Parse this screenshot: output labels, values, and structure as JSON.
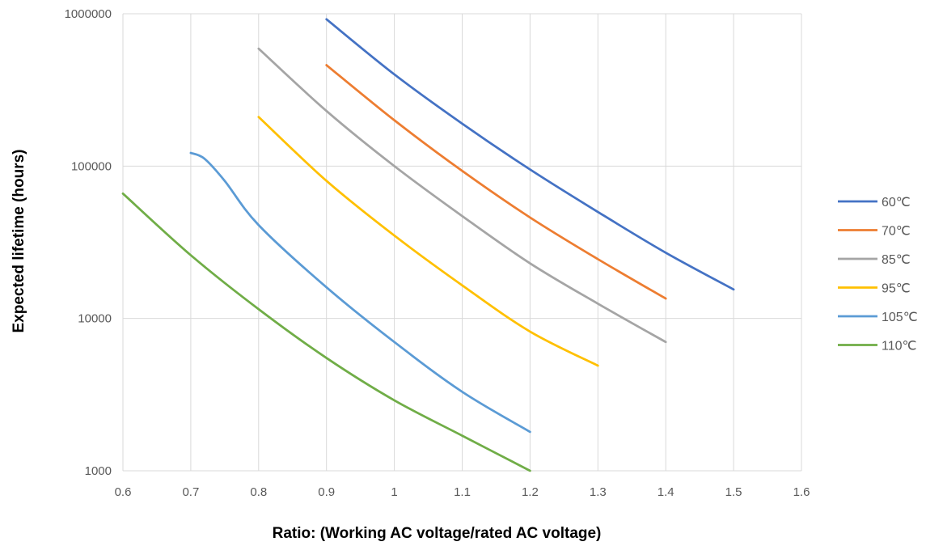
{
  "chart_data": {
    "type": "line",
    "xlabel": "Ratio: (Working AC voltage/rated AC voltage)",
    "ylabel": "Expected lifetime (hours)",
    "yscale": "log",
    "xlim": [
      0.6,
      1.6
    ],
    "ylim": [
      1000,
      1000000
    ],
    "x_ticks": [
      "0.6",
      "0.7",
      "0.8",
      "0.9",
      "1",
      "1.1",
      "1.2",
      "1.3",
      "1.4",
      "1.5",
      "1.6"
    ],
    "y_ticks": [
      "1000",
      "10000",
      "100000",
      "1000000"
    ],
    "grid": true,
    "legend_position": "right",
    "series": [
      {
        "name": "60℃",
        "color": "#4472C4",
        "points": [
          [
            0.9,
            920000
          ],
          [
            1.0,
            400000
          ],
          [
            1.1,
            190000
          ],
          [
            1.2,
            95000
          ],
          [
            1.3,
            50000
          ],
          [
            1.4,
            27000
          ],
          [
            1.5,
            15500
          ]
        ]
      },
      {
        "name": "70℃",
        "color": "#ED7D31",
        "points": [
          [
            0.9,
            460000
          ],
          [
            1.0,
            200000
          ],
          [
            1.1,
            93000
          ],
          [
            1.2,
            46000
          ],
          [
            1.3,
            24500
          ],
          [
            1.4,
            13500
          ]
        ]
      },
      {
        "name": "85℃",
        "color": "#A5A5A5",
        "points": [
          [
            0.8,
            590000
          ],
          [
            0.9,
            230000
          ],
          [
            1.0,
            100000
          ],
          [
            1.1,
            47000
          ],
          [
            1.2,
            23000
          ],
          [
            1.3,
            12500
          ],
          [
            1.4,
            7000
          ]
        ]
      },
      {
        "name": "95℃",
        "color": "#FFC000",
        "points": [
          [
            0.8,
            210000
          ],
          [
            0.9,
            80000
          ],
          [
            1.0,
            35000
          ],
          [
            1.1,
            16500
          ],
          [
            1.2,
            8200
          ],
          [
            1.3,
            4900
          ]
        ]
      },
      {
        "name": "105℃",
        "color": "#5B9BD5",
        "points": [
          [
            0.7,
            122000
          ],
          [
            0.72,
            112000
          ],
          [
            0.75,
            80000
          ],
          [
            0.8,
            41000
          ],
          [
            0.9,
            16000
          ],
          [
            1.0,
            7000
          ],
          [
            1.1,
            3300
          ],
          [
            1.2,
            1800
          ]
        ]
      },
      {
        "name": "110℃",
        "color": "#70AD47",
        "points": [
          [
            0.6,
            66000
          ],
          [
            0.7,
            26000
          ],
          [
            0.8,
            11500
          ],
          [
            0.9,
            5500
          ],
          [
            1.0,
            2900
          ],
          [
            1.1,
            1700
          ],
          [
            1.2,
            1000
          ]
        ]
      }
    ]
  }
}
